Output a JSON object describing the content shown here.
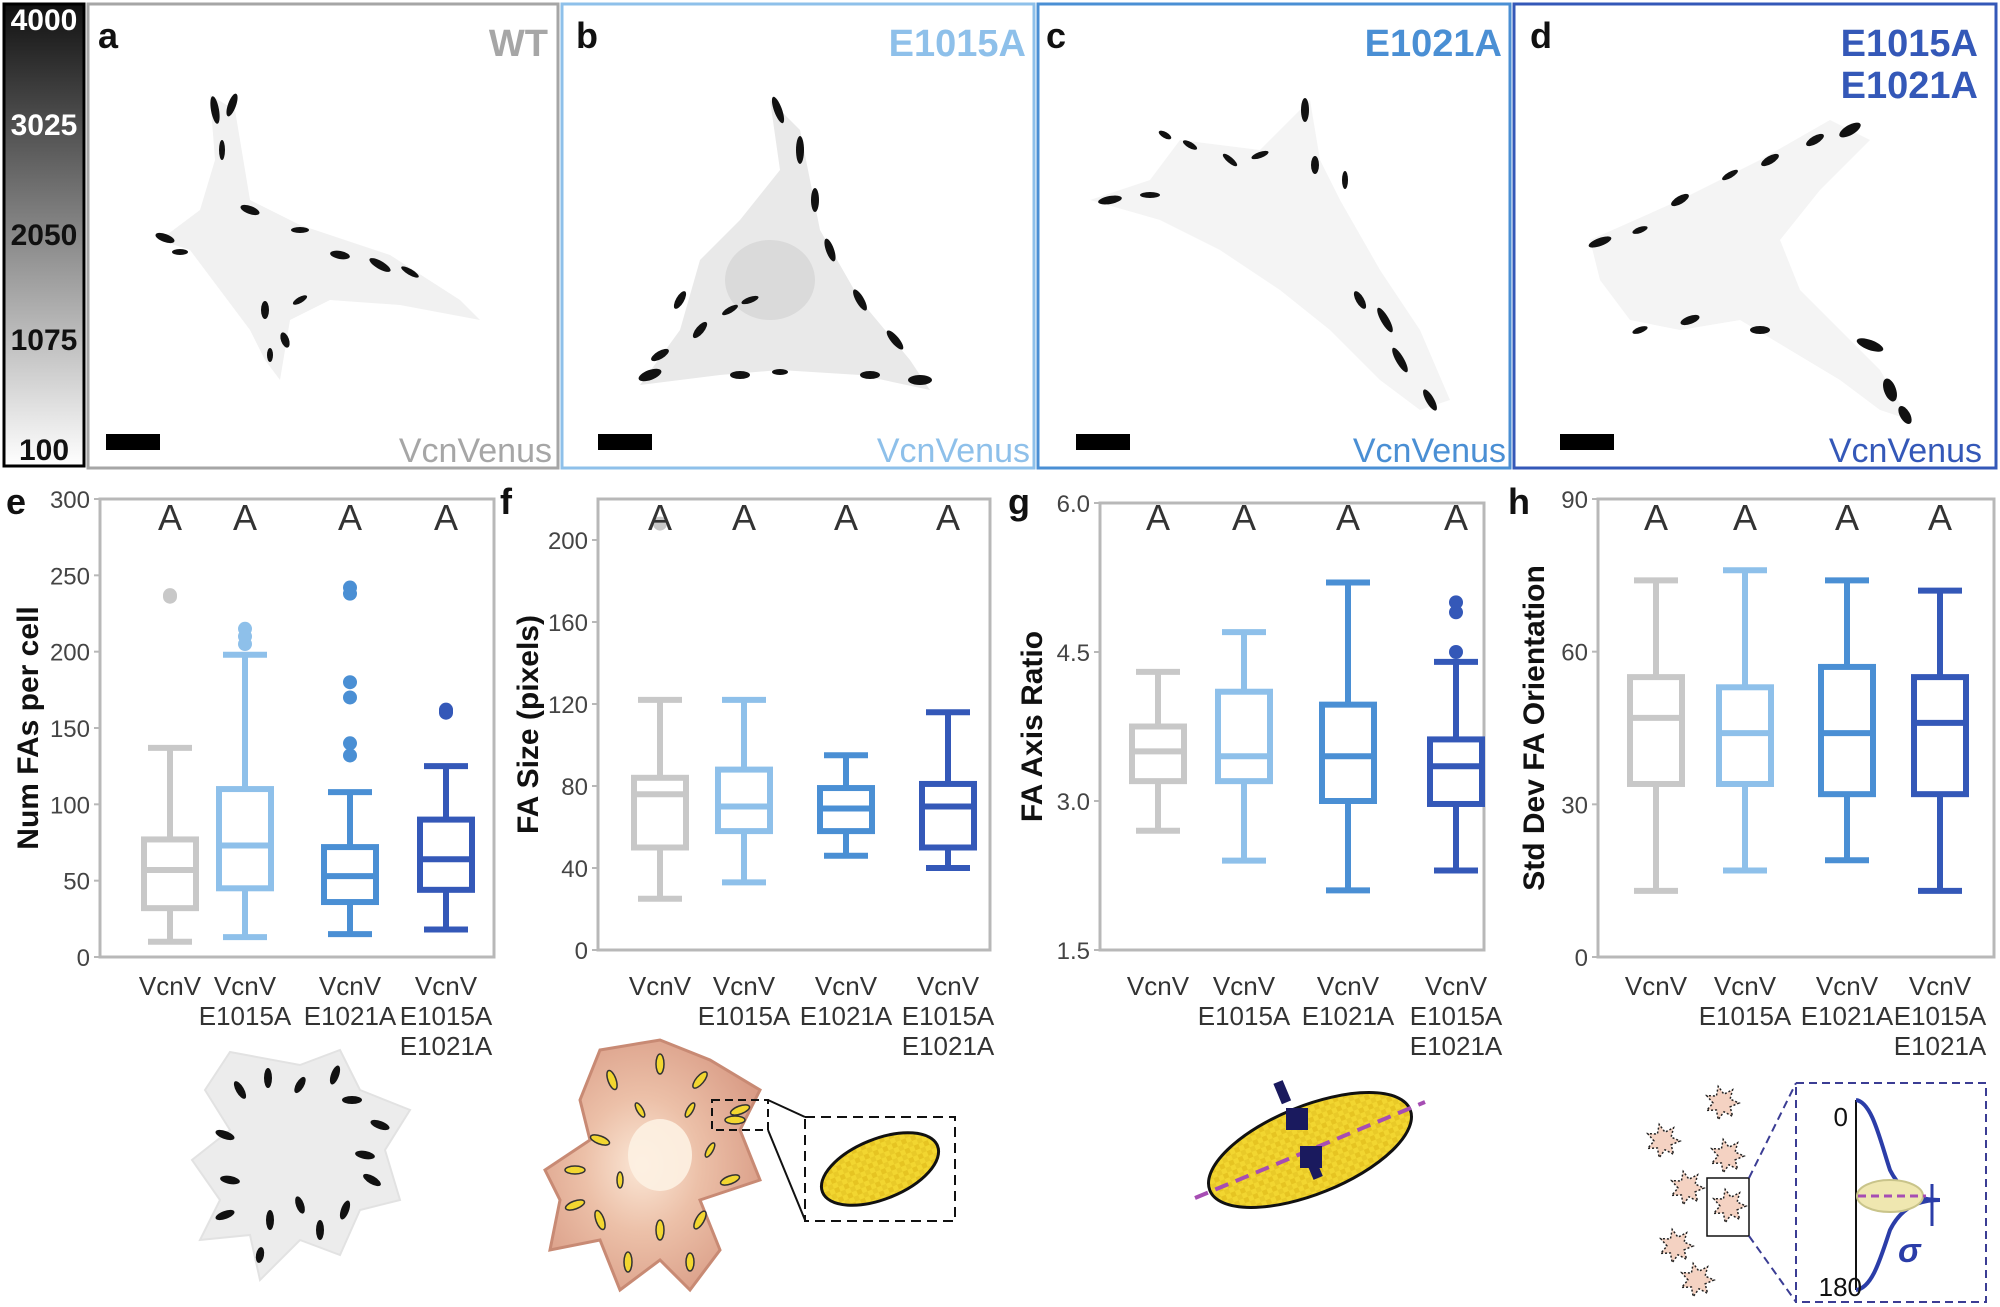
{
  "colorbar": {
    "ticks": [
      "4000",
      "3025",
      "2050",
      "1075",
      "100"
    ]
  },
  "micro_panels": [
    {
      "letter": "a",
      "title": [
        "WT"
      ],
      "stain": "VcnVenus",
      "color": "#a6a6a6"
    },
    {
      "letter": "b",
      "title": [
        "E1015A"
      ],
      "stain": "VcnVenus",
      "color": "#8ec0ea"
    },
    {
      "letter": "c",
      "title": [
        "E1021A"
      ],
      "stain": "VcnVenus",
      "color": "#4a8fd4"
    },
    {
      "letter": "d",
      "title": [
        "E1015A",
        "E1021A"
      ],
      "stain": "VcnVenus",
      "color": "#3458b8"
    }
  ],
  "group_colors": [
    "#c8c8c8",
    "#8ec0ea",
    "#4a8fd4",
    "#3458b8"
  ],
  "groups": [
    [
      "VcnV"
    ],
    [
      "VcnV",
      "E1015A"
    ],
    [
      "VcnV",
      "E1021A"
    ],
    [
      "VcnV",
      "E1015A",
      "E1021A"
    ]
  ],
  "chart_data": [
    {
      "panel": "e",
      "type": "box",
      "ylabel": "Num FAs per cell",
      "ylim": [
        0,
        300
      ],
      "yticks": [
        "0",
        "50",
        "100",
        "150",
        "200",
        "250",
        "300"
      ],
      "significance": [
        "A",
        "A",
        "A",
        "A"
      ],
      "series": [
        {
          "min": 10,
          "q1": 32,
          "median": 57,
          "q3": 77,
          "max": 137,
          "outliers": [
            236,
            237
          ]
        },
        {
          "min": 13,
          "q1": 45,
          "median": 73,
          "q3": 110,
          "max": 198,
          "outliers": [
            205,
            210,
            215
          ]
        },
        {
          "min": 15,
          "q1": 36,
          "median": 53,
          "q3": 72,
          "max": 108,
          "outliers": [
            132,
            140,
            170,
            180,
            238,
            242
          ]
        },
        {
          "min": 18,
          "q1": 44,
          "median": 64,
          "q3": 90,
          "max": 125,
          "outliers": [
            160,
            161,
            162
          ]
        }
      ]
    },
    {
      "panel": "f",
      "type": "box",
      "ylabel": "FA Size (pixels)",
      "ylim": [
        0,
        220
      ],
      "yticks": [
        "0",
        "40",
        "80",
        "120",
        "160",
        "200"
      ],
      "significance": [
        "A",
        "A",
        "A",
        "A"
      ],
      "series": [
        {
          "min": 25,
          "q1": 50,
          "median": 76,
          "q3": 84,
          "max": 122,
          "outliers": [
            208
          ]
        },
        {
          "min": 33,
          "q1": 58,
          "median": 70,
          "q3": 88,
          "max": 122,
          "outliers": []
        },
        {
          "min": 46,
          "q1": 58,
          "median": 69,
          "q3": 79,
          "max": 95,
          "outliers": []
        },
        {
          "min": 40,
          "q1": 50,
          "median": 70,
          "q3": 81,
          "max": 116,
          "outliers": []
        }
      ]
    },
    {
      "panel": "g",
      "type": "box",
      "ylabel": "FA Axis Ratio",
      "ylim": [
        1.5,
        6.0
      ],
      "yticks": [
        "1.5",
        "3.0",
        "4.5",
        "6.0"
      ],
      "significance": [
        "A",
        "A",
        "A",
        "A"
      ],
      "series": [
        {
          "min": 2.7,
          "q1": 3.2,
          "median": 3.5,
          "q3": 3.75,
          "max": 4.3,
          "outliers": []
        },
        {
          "min": 2.4,
          "q1": 3.2,
          "median": 3.45,
          "q3": 4.1,
          "max": 4.7,
          "outliers": []
        },
        {
          "min": 2.1,
          "q1": 3.0,
          "median": 3.45,
          "q3": 3.97,
          "max": 5.2,
          "outliers": []
        },
        {
          "min": 2.3,
          "q1": 2.97,
          "median": 3.35,
          "q3": 3.62,
          "max": 4.4,
          "outliers": [
            4.5,
            4.9,
            5.0
          ]
        }
      ]
    },
    {
      "panel": "h",
      "type": "box",
      "ylabel": "Std Dev FA Orientation",
      "ylim": [
        0,
        90
      ],
      "yticks": [
        "0",
        "30",
        "60",
        "90"
      ],
      "significance": [
        "A",
        "A",
        "A",
        "A"
      ],
      "series": [
        {
          "min": 13,
          "q1": 34,
          "median": 47,
          "q3": 55,
          "max": 74,
          "outliers": []
        },
        {
          "min": 17,
          "q1": 34,
          "median": 44,
          "q3": 53,
          "max": 76,
          "outliers": []
        },
        {
          "min": 19,
          "q1": 32,
          "median": 44,
          "q3": 57,
          "max": 74,
          "outliers": []
        },
        {
          "min": 13,
          "q1": 32,
          "median": 46,
          "q3": 55,
          "max": 72,
          "outliers": []
        }
      ]
    }
  ],
  "schematic_orientation": {
    "top": "0",
    "bottom": "180",
    "symbol": "σ"
  }
}
